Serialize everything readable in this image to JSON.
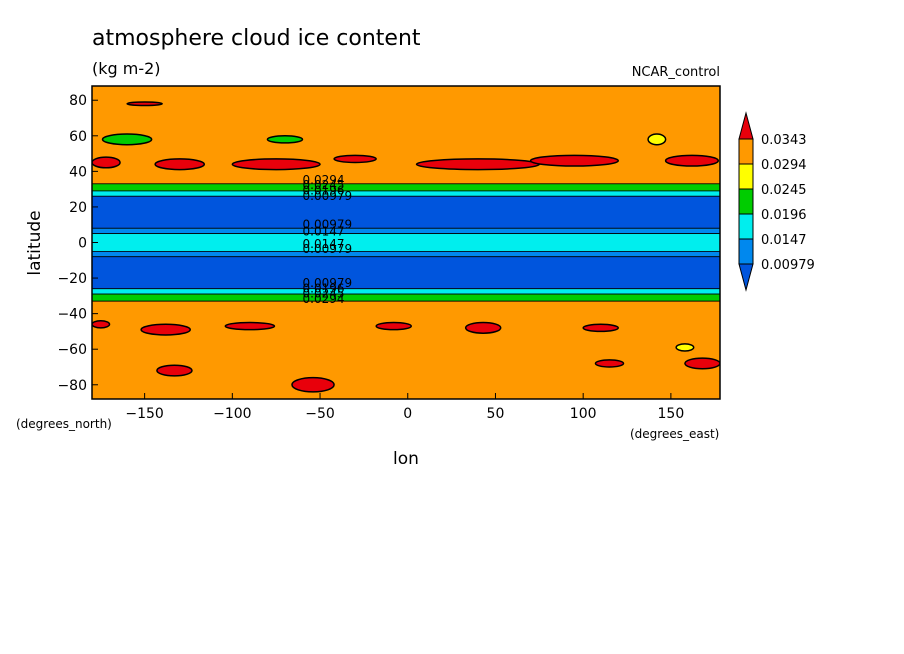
{
  "chart_data": {
    "type": "heatmap",
    "title": "atmosphere cloud ice content",
    "subtitle": "(kg m-2)",
    "dataset": "NCAR_control",
    "xlabel": "lon",
    "ylabel": "latitude",
    "x_units": "(degrees_east)",
    "y_units": "(degrees_north)",
    "xlim": [
      -180,
      178
    ],
    "ylim": [
      -88,
      88
    ],
    "x_ticks": [
      -150,
      -100,
      -50,
      0,
      50,
      100,
      150
    ],
    "y_ticks": [
      80,
      60,
      40,
      20,
      0,
      -20,
      -40,
      -60,
      -80
    ],
    "colorbar": {
      "levels": [
        "0.0343",
        "0.0294",
        "0.0245",
        "0.0196",
        "0.0147",
        "0.00979"
      ],
      "colors": [
        "#e8000b",
        "#ff9900",
        "#ffff00",
        "#00cc00",
        "#00eeee",
        "#0088ee",
        "#0055dd"
      ]
    },
    "bands": [
      {
        "lat_min": 33,
        "lat_max": 88,
        "class": 1
      },
      {
        "lat_min": 29,
        "lat_max": 33,
        "class": 3
      },
      {
        "lat_min": 26,
        "lat_max": 29,
        "class": 4
      },
      {
        "lat_min": 8,
        "lat_max": 26,
        "class": 6
      },
      {
        "lat_min": 5,
        "lat_max": 8,
        "class": 5
      },
      {
        "lat_min": -5,
        "lat_max": 5,
        "class": 4
      },
      {
        "lat_min": -8,
        "lat_max": -5,
        "class": 5
      },
      {
        "lat_min": -26,
        "lat_max": -8,
        "class": 6
      },
      {
        "lat_min": -29,
        "lat_max": -26,
        "class": 4
      },
      {
        "lat_min": -33,
        "lat_max": -29,
        "class": 3
      },
      {
        "lat_min": -88,
        "lat_max": -33,
        "class": 1
      }
    ],
    "blobs": [
      {
        "lon": -160,
        "lat": 58,
        "rlon": 14,
        "rlat": 3,
        "class": 3
      },
      {
        "lon": -172,
        "lat": 45,
        "rlon": 8,
        "rlat": 3,
        "class": 0
      },
      {
        "lon": -130,
        "lat": 44,
        "rlon": 14,
        "rlat": 3,
        "class": 0
      },
      {
        "lon": -75,
        "lat": 44,
        "rlon": 25,
        "rlat": 3,
        "class": 0
      },
      {
        "lon": -30,
        "lat": 47,
        "rlon": 12,
        "rlat": 2,
        "class": 0
      },
      {
        "lon": 40,
        "lat": 44,
        "rlon": 35,
        "rlat": 3,
        "class": 0
      },
      {
        "lon": 95,
        "lat": 46,
        "rlon": 25,
        "rlat": 3,
        "class": 0
      },
      {
        "lon": 162,
        "lat": 46,
        "rlon": 15,
        "rlat": 3,
        "class": 0
      },
      {
        "lon": 142,
        "lat": 58,
        "rlon": 5,
        "rlat": 3,
        "class": 2
      },
      {
        "lon": -70,
        "lat": 58,
        "rlon": 10,
        "rlat": 2,
        "class": 3
      },
      {
        "lon": -175,
        "lat": -46,
        "rlon": 5,
        "rlat": 2,
        "class": 0
      },
      {
        "lon": -138,
        "lat": -49,
        "rlon": 14,
        "rlat": 3,
        "class": 0
      },
      {
        "lon": -90,
        "lat": -47,
        "rlon": 14,
        "rlat": 2,
        "class": 0
      },
      {
        "lon": -8,
        "lat": -47,
        "rlon": 10,
        "rlat": 2,
        "class": 0
      },
      {
        "lon": 43,
        "lat": -48,
        "rlon": 10,
        "rlat": 3,
        "class": 0
      },
      {
        "lon": 110,
        "lat": -48,
        "rlon": 10,
        "rlat": 2,
        "class": 0
      },
      {
        "lon": -133,
        "lat": -72,
        "rlon": 10,
        "rlat": 3,
        "class": 0
      },
      {
        "lon": -54,
        "lat": -80,
        "rlon": 12,
        "rlat": 4,
        "class": 0
      },
      {
        "lon": 115,
        "lat": -68,
        "rlon": 8,
        "rlat": 2,
        "class": 0
      },
      {
        "lon": 168,
        "lat": -68,
        "rlon": 10,
        "rlat": 3,
        "class": 0
      },
      {
        "lon": 158,
        "lat": -59,
        "rlon": 5,
        "rlat": 2,
        "class": 2
      },
      {
        "lon": -150,
        "lat": 78,
        "rlon": 10,
        "rlat": 1,
        "class": 0
      }
    ],
    "contour_labels": [
      {
        "lon": -60,
        "lat": 33,
        "text": "0.0294"
      },
      {
        "lon": -60,
        "lat": 30,
        "text": "0.0245"
      },
      {
        "lon": -60,
        "lat": 27,
        "text": "0.0196"
      },
      {
        "lon": -60,
        "lat": 24,
        "text": "0.00979"
      },
      {
        "lon": -60,
        "lat": 8,
        "text": "0.00979"
      },
      {
        "lon": -60,
        "lat": 4,
        "text": "0.0147"
      },
      {
        "lon": -60,
        "lat": -3,
        "text": "0.0147"
      },
      {
        "lon": -60,
        "lat": -6,
        "text": "0.00979"
      },
      {
        "lon": -60,
        "lat": -25,
        "text": "0.00979"
      },
      {
        "lon": -60,
        "lat": -28,
        "text": "0.0196"
      },
      {
        "lon": -60,
        "lat": -31,
        "text": "0.0245"
      },
      {
        "lon": -60,
        "lat": -34,
        "text": "0.0294"
      }
    ]
  }
}
